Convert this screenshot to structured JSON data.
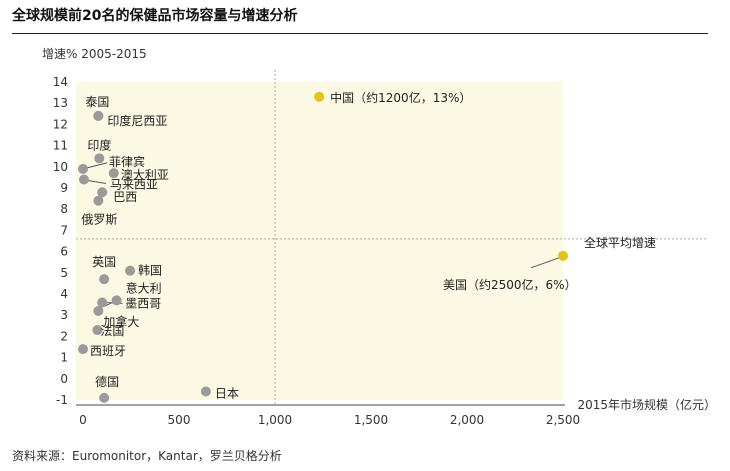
{
  "title": "全球规模前20名的保健品市场容量与增速分析",
  "source": "资料来源：Euromonitor，Kantar，罗兰贝格分析",
  "chart_data": {
    "type": "scatter",
    "ylabel": "增速% 2005-2015",
    "xlabel": "2015年市场规模（亿元）",
    "xlim": [
      -40,
      2500
    ],
    "ylim": [
      -1,
      14
    ],
    "x_ticks": [
      0,
      500,
      1000,
      1500,
      2000,
      2500
    ],
    "x_tick_labels": [
      "0",
      "500",
      "1,000",
      "1,500",
      "2,000",
      "2,500"
    ],
    "y_ticks": [
      -1,
      0,
      1,
      2,
      3,
      4,
      5,
      6,
      7,
      8,
      9,
      10,
      11,
      12,
      13,
      14
    ],
    "avg_x": 1000,
    "avg_y": 6.6,
    "avg_label": "全球平均增速",
    "colors": {
      "regular": "#9a9a9a",
      "highlight": "#e3c21a",
      "quadrant": "#fbf8e4"
    },
    "points": [
      {
        "label": "中国（约1200亿，13%）",
        "x": 1230,
        "y": 13.3,
        "highlight": true
      },
      {
        "label": "美国（约2500亿，6%）",
        "x": 2500,
        "y": 5.8,
        "highlight": true
      },
      {
        "label": "泰国",
        "x": 80,
        "y": 12.4
      },
      {
        "label": "印度尼西亚",
        "x": 80,
        "y": 12.4
      },
      {
        "label": "印度",
        "x": 85,
        "y": 10.4
      },
      {
        "label": "菲律宾",
        "x": 0,
        "y": 9.9
      },
      {
        "label": "澳大利亚",
        "x": 160,
        "y": 9.7
      },
      {
        "label": "马来西亚",
        "x": 5,
        "y": 9.4
      },
      {
        "label": "巴西",
        "x": 100,
        "y": 8.8
      },
      {
        "label": "俄罗斯",
        "x": 80,
        "y": 8.4
      },
      {
        "label": "英国",
        "x": 110,
        "y": 4.7
      },
      {
        "label": "韩国",
        "x": 245,
        "y": 5.1
      },
      {
        "label": "意大利",
        "x": 175,
        "y": 3.7
      },
      {
        "label": "墨西哥",
        "x": 100,
        "y": 3.6
      },
      {
        "label": "加拿大",
        "x": 80,
        "y": 3.2
      },
      {
        "label": "法国",
        "x": 75,
        "y": 2.3
      },
      {
        "label": "西班牙",
        "x": 0,
        "y": 1.4
      },
      {
        "label": "德国",
        "x": 110,
        "y": -0.9
      },
      {
        "label": "日本",
        "x": 640,
        "y": -0.6
      }
    ]
  }
}
